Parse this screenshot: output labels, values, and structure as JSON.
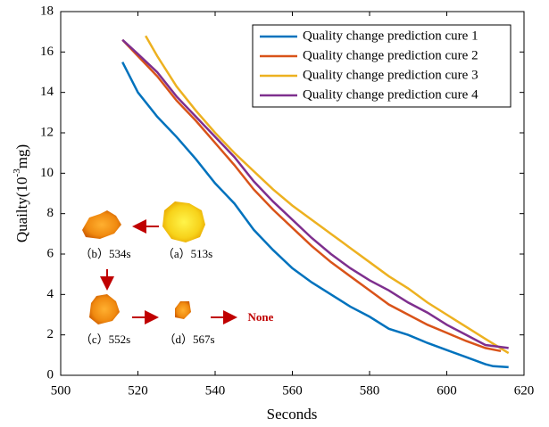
{
  "chart_data": {
    "type": "line",
    "xlabel": "Seconds",
    "ylabel": [
      "Quailty(10",
      "-3",
      "mg)"
    ],
    "xlim": [
      500,
      620
    ],
    "xticks": [
      500,
      520,
      540,
      560,
      580,
      600,
      620
    ],
    "ylim": [
      0,
      18
    ],
    "yticks": [
      0,
      2,
      4,
      6,
      8,
      10,
      12,
      14,
      16,
      18
    ],
    "legend": "upper right",
    "series": [
      {
        "name": "Quality change prediction cure 1",
        "color": "#0072bd",
        "x": [
          516,
          520,
          525,
          530,
          535,
          540,
          545,
          550,
          555,
          560,
          565,
          570,
          575,
          580,
          585,
          590,
          595,
          600,
          605,
          610,
          612,
          616
        ],
        "values": [
          15.5,
          14.0,
          12.8,
          11.8,
          10.7,
          9.5,
          8.5,
          7.2,
          6.2,
          5.3,
          4.6,
          4.0,
          3.4,
          2.9,
          2.3,
          2.0,
          1.6,
          1.25,
          0.9,
          0.55,
          0.45,
          0.4
        ]
      },
      {
        "name": "Quality change prediction cure 2",
        "color": "#d95319",
        "x": [
          516,
          520,
          525,
          530,
          535,
          540,
          545,
          550,
          555,
          560,
          565,
          570,
          575,
          580,
          585,
          590,
          595,
          600,
          605,
          610,
          614
        ],
        "values": [
          16.6,
          15.8,
          14.8,
          13.6,
          12.6,
          11.5,
          10.4,
          9.2,
          8.2,
          7.3,
          6.4,
          5.6,
          4.9,
          4.2,
          3.5,
          3.0,
          2.5,
          2.1,
          1.7,
          1.35,
          1.2
        ]
      },
      {
        "name": "Quality change prediction cure 3",
        "color": "#edb120",
        "x": [
          522,
          525,
          530,
          535,
          540,
          545,
          550,
          555,
          560,
          565,
          570,
          575,
          580,
          585,
          590,
          595,
          600,
          605,
          610,
          616
        ],
        "values": [
          16.8,
          15.8,
          14.3,
          13.1,
          12.0,
          11.0,
          10.1,
          9.2,
          8.4,
          7.7,
          7.0,
          6.3,
          5.6,
          4.9,
          4.3,
          3.6,
          3.0,
          2.4,
          1.8,
          1.1
        ]
      },
      {
        "name": "Quality change prediction cure 4",
        "color": "#7e2f8e",
        "x": [
          516,
          520,
          525,
          530,
          535,
          540,
          545,
          550,
          555,
          560,
          565,
          570,
          575,
          580,
          585,
          590,
          595,
          600,
          605,
          610,
          616
        ],
        "values": [
          16.6,
          15.9,
          15.0,
          13.8,
          12.8,
          11.8,
          10.8,
          9.6,
          8.6,
          7.7,
          6.8,
          6.0,
          5.3,
          4.7,
          4.2,
          3.6,
          3.1,
          2.5,
          2.0,
          1.5,
          1.35
        ]
      }
    ],
    "annotations": [
      "（b）534s",
      "（a）513s",
      "（c）552s",
      "（d）567s",
      "None"
    ]
  }
}
